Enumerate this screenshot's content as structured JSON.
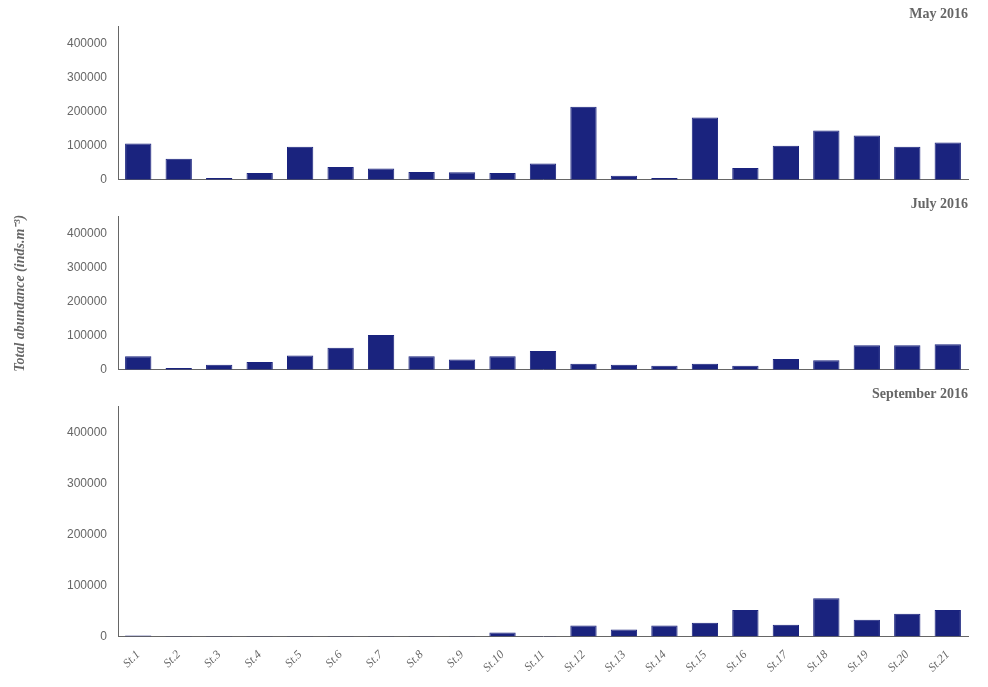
{
  "chart_data": [
    {
      "type": "bar",
      "title": "May 2016",
      "categories": [
        "St.1",
        "St.2",
        "St.3",
        "St.4",
        "St.5",
        "St.6",
        "St.7",
        "St.8",
        "St.9",
        "St.10",
        "St.11",
        "St.12",
        "St.13",
        "St.14",
        "St.15",
        "St.16",
        "St.17",
        "St.18",
        "St.19",
        "St.20",
        "St.21"
      ],
      "values": [
        107000,
        62000,
        5000,
        20000,
        97000,
        38000,
        33000,
        23000,
        22000,
        20000,
        48000,
        215000,
        12000,
        5000,
        183000,
        35000,
        100000,
        145000,
        130000,
        97000,
        110000
      ],
      "color": "#1a237e",
      "ylim": [
        0,
        450000
      ],
      "yticks": [
        0,
        100000,
        200000,
        300000,
        400000
      ],
      "grid": false,
      "tick_labels": "y"
    },
    {
      "type": "bar",
      "title": "July 2016",
      "ylabel": "Total abundance (inds.m⁻³)",
      "categories": [
        "St.1",
        "St.2",
        "St.3",
        "St.4",
        "St.5",
        "St.6",
        "St.7",
        "St.8",
        "St.9",
        "St.10",
        "St.11",
        "St.12",
        "St.13",
        "St.14",
        "St.15",
        "St.16",
        "St.17",
        "St.18",
        "St.19",
        "St.20",
        "St.21"
      ],
      "values": [
        40000,
        5000,
        15000,
        23000,
        42000,
        65000,
        102000,
        40000,
        30000,
        40000,
        55000,
        18000,
        15000,
        12000,
        18000,
        12000,
        32000,
        28000,
        72000,
        72000,
        75000
      ],
      "color": "#1a237e",
      "ylim": [
        0,
        450000
      ],
      "yticks": [
        0,
        100000,
        200000,
        300000,
        400000
      ],
      "grid": false,
      "tick_labels": "y"
    },
    {
      "type": "bar",
      "title": "September 2016",
      "categories": [
        "St.1",
        "St.2",
        "St.3",
        "St.4",
        "St.5",
        "St.6",
        "St.7",
        "St.8",
        "St.9",
        "St.10",
        "St.11",
        "St.12",
        "St.13",
        "St.14",
        "St.15",
        "St.16",
        "St.17",
        "St.18",
        "St.19",
        "St.20",
        "St.21"
      ],
      "values": [
        2000,
        1000,
        1000,
        1000,
        1000,
        1000,
        1000,
        1000,
        1000,
        8000,
        1000,
        22000,
        14000,
        22000,
        27000,
        52000,
        23000,
        75000,
        33000,
        45000,
        52000
      ],
      "color": "#1a237e",
      "ylim": [
        0,
        450000
      ],
      "yticks": [
        0,
        100000,
        200000,
        300000,
        400000
      ],
      "grid": false
    }
  ]
}
